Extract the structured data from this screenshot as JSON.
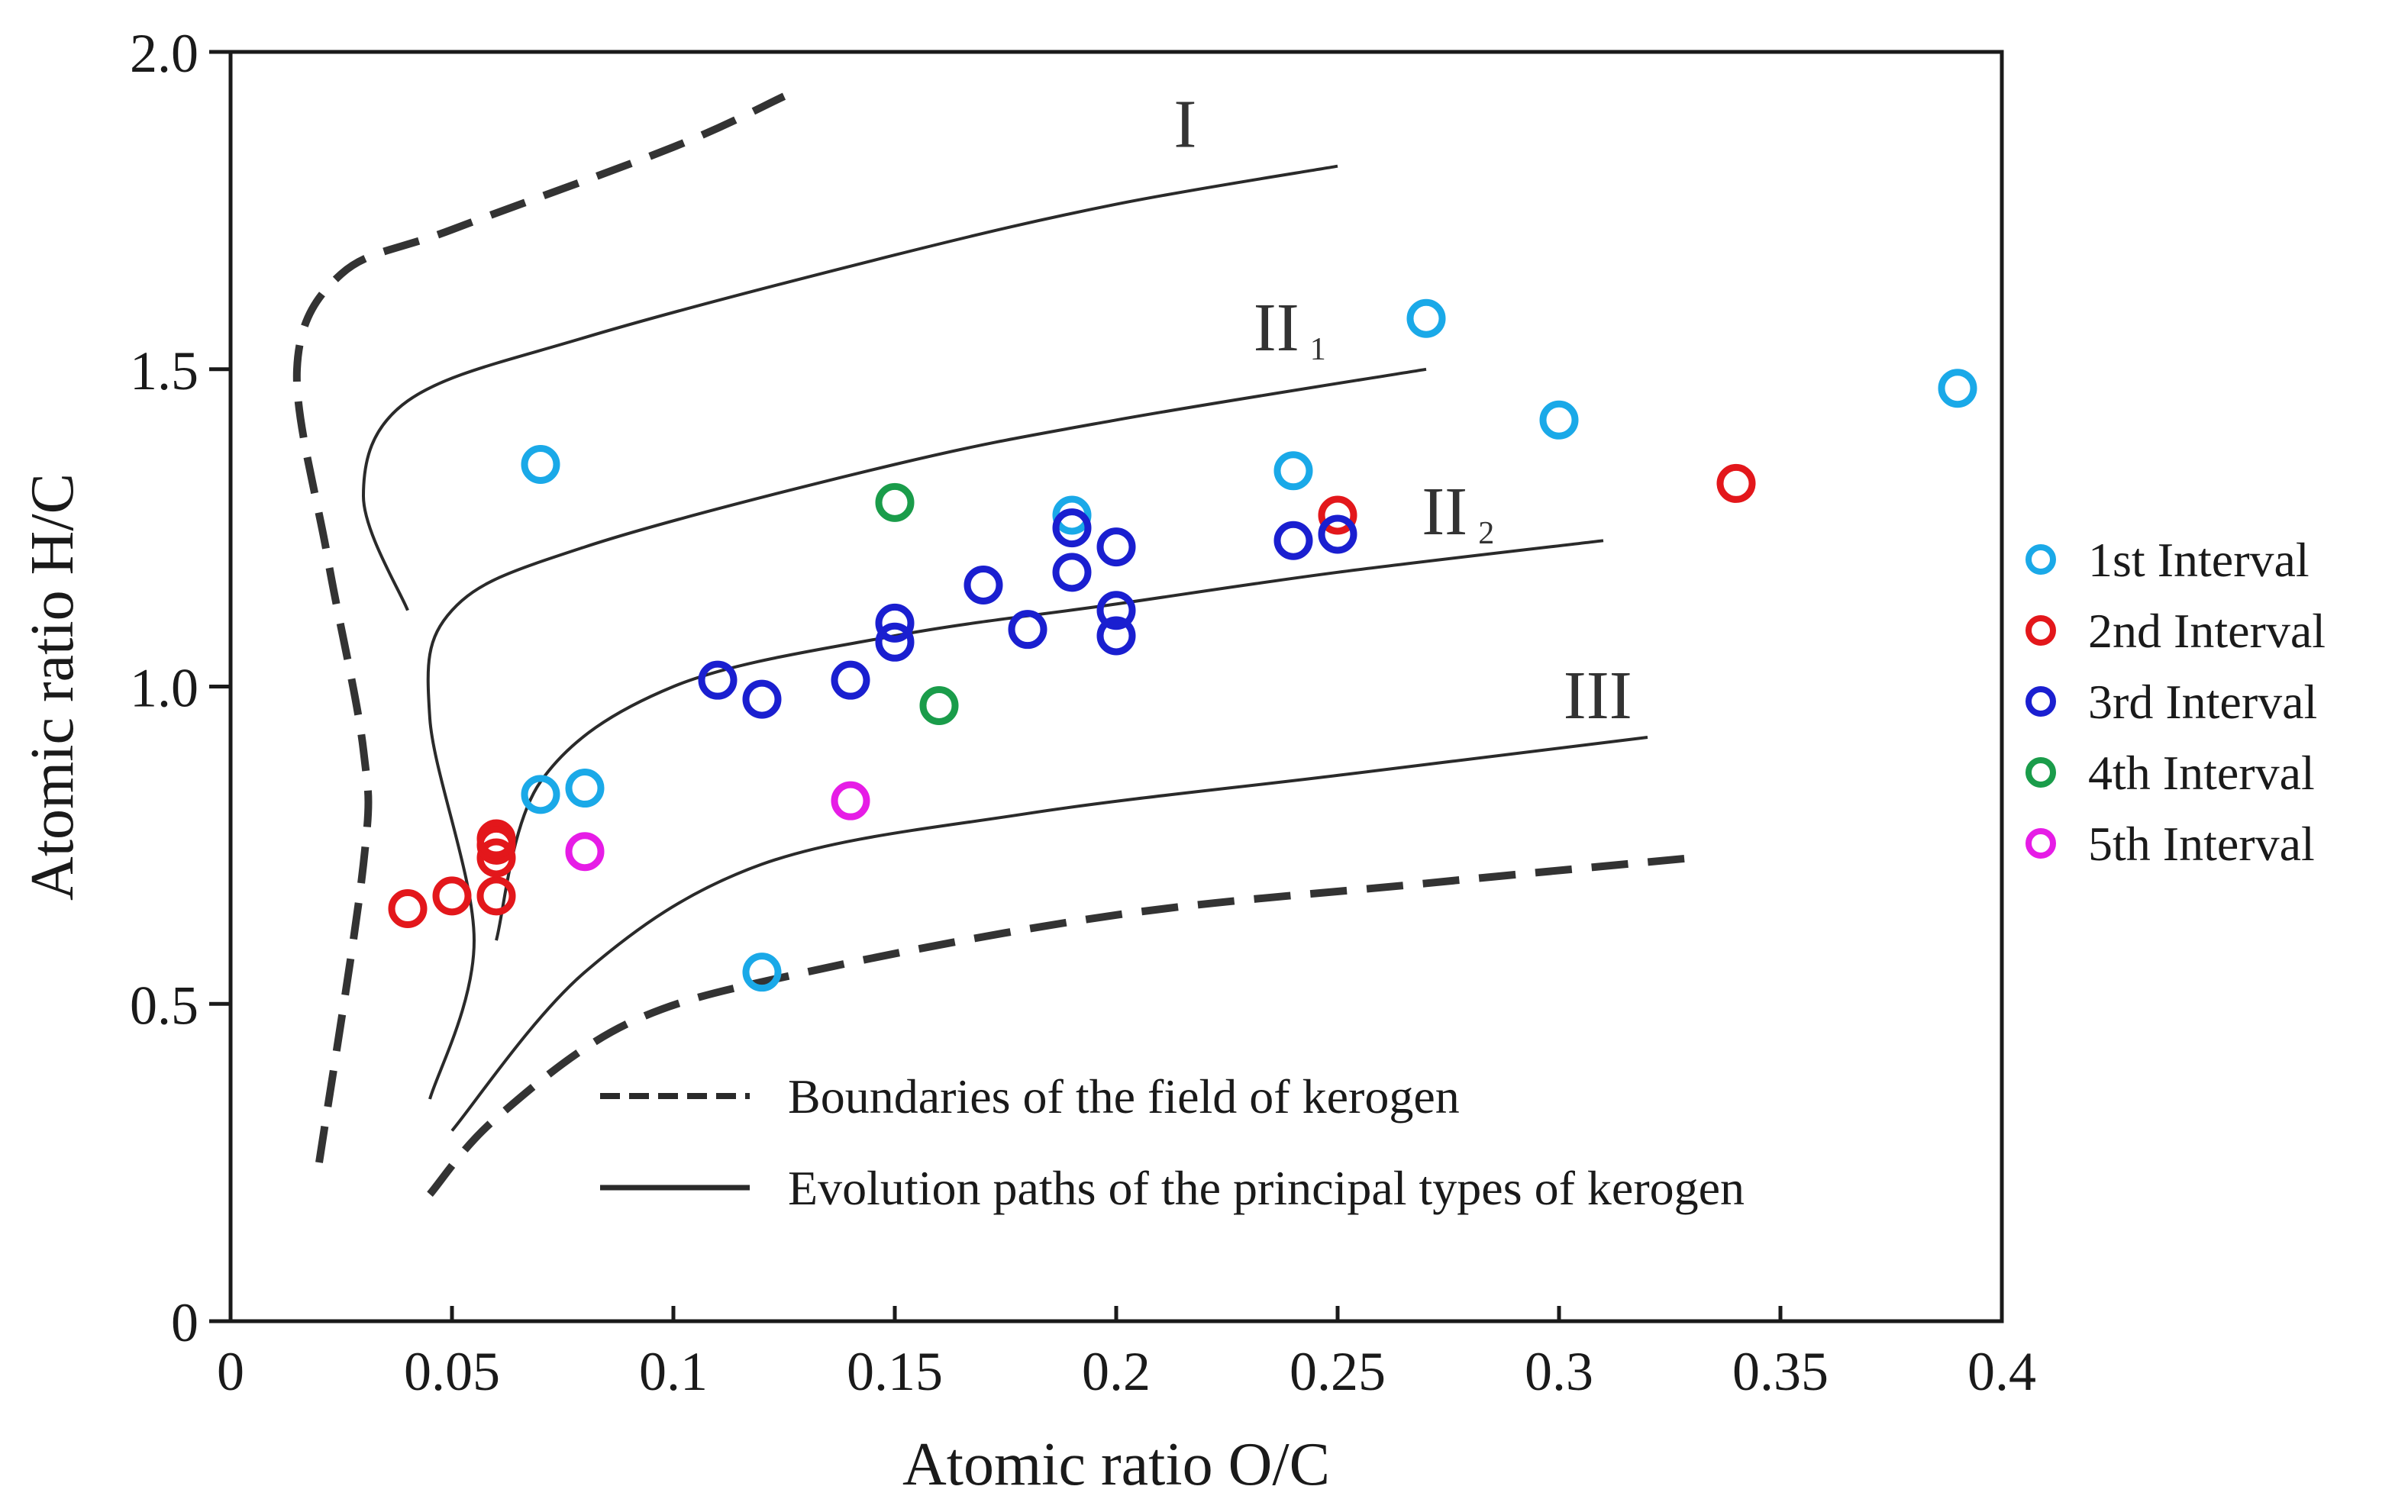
{
  "chart_data": {
    "type": "scatter",
    "title": "",
    "xlabel": "Atomic ratio O/C",
    "ylabel": "Atomic ratio H/C",
    "xlim": [
      0,
      0.4
    ],
    "ylim": [
      0,
      2.0
    ],
    "xticks": [
      0,
      0.05,
      0.1,
      0.15,
      0.2,
      0.25,
      0.3,
      0.35,
      0.4
    ],
    "xtick_labels": [
      "0",
      "0.05",
      "0.1",
      "0.15",
      "0.2",
      "0.25",
      "0.3",
      "0.35",
      "0.4"
    ],
    "yticks": [
      0,
      0.5,
      1.0,
      1.5,
      2.0
    ],
    "ytick_labels": [
      "0",
      "0.5",
      "1.0",
      "1.5",
      "2.0"
    ],
    "legend_position": "right",
    "series": [
      {
        "name": "1st Interval",
        "color": "#1aa9e8",
        "x": [
          0.07,
          0.07,
          0.08,
          0.12,
          0.19,
          0.24,
          0.27,
          0.3,
          0.39
        ],
        "y": [
          1.35,
          0.83,
          0.84,
          0.55,
          1.27,
          1.34,
          1.58,
          1.42,
          1.47
        ]
      },
      {
        "name": "2nd Interval",
        "color": "#e3171b",
        "x": [
          0.04,
          0.05,
          0.06,
          0.06,
          0.06,
          0.06,
          0.25,
          0.34
        ],
        "y": [
          0.65,
          0.67,
          0.67,
          0.73,
          0.75,
          0.76,
          1.27,
          1.32
        ]
      },
      {
        "name": "3rd Interval",
        "color": "#1a1fd0",
        "x": [
          0.11,
          0.12,
          0.14,
          0.15,
          0.15,
          0.17,
          0.18,
          0.19,
          0.19,
          0.2,
          0.2,
          0.2,
          0.24,
          0.25
        ],
        "y": [
          1.01,
          0.98,
          1.01,
          1.1,
          1.07,
          1.16,
          1.09,
          1.18,
          1.25,
          1.22,
          1.12,
          1.08,
          1.23,
          1.24
        ]
      },
      {
        "name": "4th Interval",
        "color": "#1a9c4a",
        "x": [
          0.15,
          0.16
        ],
        "y": [
          1.29,
          0.97
        ]
      },
      {
        "name": "5th Interval",
        "color": "#e61ce6",
        "x": [
          0.08,
          0.14
        ],
        "y": [
          0.74,
          0.82
        ]
      }
    ],
    "curves": [
      {
        "name": "kerogen-boundary-upper",
        "style": "dashed",
        "points": [
          [
            0.02,
            0.25
          ],
          [
            0.03,
            0.72
          ],
          [
            0.03,
            0.9
          ],
          [
            0.022,
            1.2
          ],
          [
            0.015,
            1.5
          ],
          [
            0.025,
            1.65
          ],
          [
            0.05,
            1.72
          ],
          [
            0.1,
            1.85
          ],
          [
            0.125,
            1.93
          ]
        ]
      },
      {
        "name": "kerogen-boundary-lower",
        "style": "dashed",
        "points": [
          [
            0.045,
            0.2
          ],
          [
            0.06,
            0.32
          ],
          [
            0.09,
            0.47
          ],
          [
            0.13,
            0.55
          ],
          [
            0.2,
            0.64
          ],
          [
            0.27,
            0.69
          ],
          [
            0.33,
            0.73
          ]
        ]
      },
      {
        "name": "path-I",
        "style": "solid",
        "points": [
          [
            0.04,
            1.12
          ],
          [
            0.03,
            1.3
          ],
          [
            0.04,
            1.45
          ],
          [
            0.08,
            1.55
          ],
          [
            0.15,
            1.68
          ],
          [
            0.2,
            1.76
          ],
          [
            0.25,
            1.82
          ]
        ]
      },
      {
        "name": "path-II1",
        "style": "solid",
        "points": [
          [
            0.045,
            0.35
          ],
          [
            0.055,
            0.6
          ],
          [
            0.045,
            0.95
          ],
          [
            0.05,
            1.12
          ],
          [
            0.08,
            1.22
          ],
          [
            0.15,
            1.35
          ],
          [
            0.2,
            1.42
          ],
          [
            0.27,
            1.5
          ]
        ]
      },
      {
        "name": "path-II2",
        "style": "solid",
        "points": [
          [
            0.06,
            0.6
          ],
          [
            0.07,
            0.85
          ],
          [
            0.1,
            1.0
          ],
          [
            0.15,
            1.08
          ],
          [
            0.2,
            1.13
          ],
          [
            0.25,
            1.18
          ],
          [
            0.31,
            1.23
          ]
        ]
      },
      {
        "name": "path-III",
        "style": "solid",
        "points": [
          [
            0.05,
            0.3
          ],
          [
            0.08,
            0.55
          ],
          [
            0.12,
            0.72
          ],
          [
            0.18,
            0.8
          ],
          [
            0.25,
            0.86
          ],
          [
            0.32,
            0.92
          ]
        ]
      }
    ],
    "type_labels": [
      {
        "name": "type-I-label",
        "text": "I",
        "sub": "",
        "x": 0.213,
        "y": 1.85
      },
      {
        "name": "type-II1-label",
        "text": "II",
        "sub": "1",
        "x": 0.231,
        "y": 1.53
      },
      {
        "name": "type-II2-label",
        "text": "II",
        "sub": "2",
        "x": 0.269,
        "y": 1.24
      },
      {
        "name": "type-III-label",
        "text": "III",
        "sub": "",
        "x": 0.301,
        "y": 0.95
      }
    ],
    "line_key": [
      {
        "style": "dashed",
        "label": "Boundaries of the field of kerogen"
      },
      {
        "style": "solid",
        "label": "Evolution paths of the principal types of kerogen"
      }
    ]
  }
}
